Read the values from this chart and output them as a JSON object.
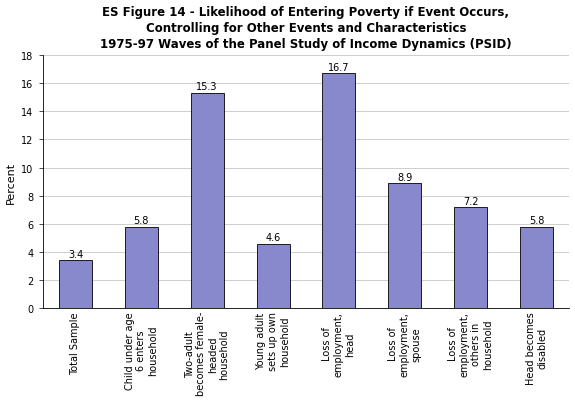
{
  "categories": [
    "Total Sample",
    "Child under age\n6 enters\nhousehold",
    "Two-adult\nbecomes female-\nheaded\nhousehold",
    "Young adult\nsets up own\nhousehold",
    "Loss of\nemployment,\nhead",
    "Loss of\nemployment,\nspouse",
    "Loss of\nemployment,\nothers in\nhousehold",
    "Head becomes\ndisabled"
  ],
  "values": [
    3.4,
    5.8,
    15.3,
    4.6,
    16.7,
    8.9,
    7.2,
    5.8
  ],
  "bar_color": "#8888CC",
  "bar_edgecolor": "#000000",
  "ylabel": "Percent",
  "ylim": [
    0,
    18
  ],
  "yticks": [
    0,
    2,
    4,
    6,
    8,
    10,
    12,
    14,
    16,
    18
  ],
  "title_line1": "ES Figure 14 - Likelihood of Entering Poverty if Event Occurs,",
  "title_line2": "Controlling for Other Events and Characteristics",
  "title_line3": "1975-97 Waves of the Panel Study of Income Dynamics (PSID)",
  "title_fontsize": 8.5,
  "label_fontsize": 7,
  "value_fontsize": 7,
  "ylabel_fontsize": 8,
  "grid_color": "#bbbbbb",
  "background_color": "#ffffff",
  "bar_width": 0.5
}
